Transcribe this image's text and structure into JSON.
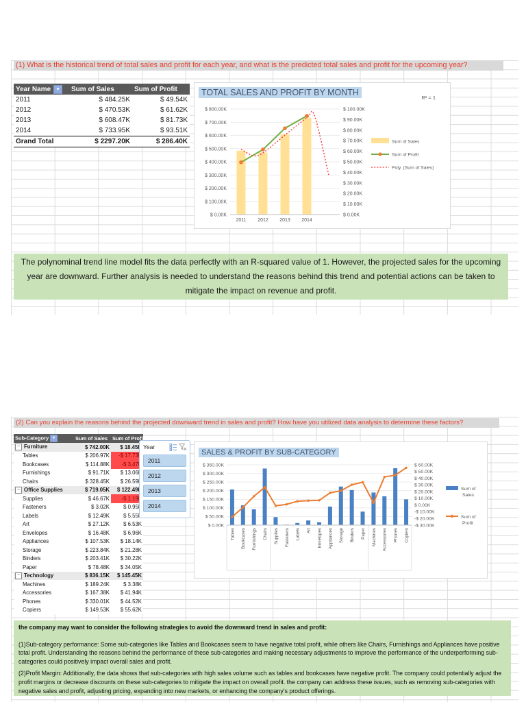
{
  "section1": {
    "question": "(1) What is the historical trend of total sales and profit for each year, and what is the predicted total sales and profit for the upcoming year?",
    "pivot": {
      "headers": [
        "Year Name",
        "Sum of Sales",
        "Sum of Profit"
      ],
      "rows": [
        [
          "2011",
          "$ 484.25K",
          "$ 49.54K"
        ],
        [
          "2012",
          "$ 470.53K",
          "$ 61.62K"
        ],
        [
          "2013",
          "$ 608.47K",
          "$ 81.73K"
        ],
        [
          "2014",
          "$ 733.95K",
          "$ 93.51K"
        ]
      ],
      "total": [
        "Grand Total",
        "$ 2297.20K",
        "$ 286.40K"
      ]
    },
    "note": "The polynominal trend line model fits the data perfectly with an R-squared value of 1. However, the projected sales for the upcoming year are downward. Further analysis is needed to understand the reasons behind this trend and potential actions can be taken to mitigate the impact on revenue and profit."
  },
  "section2": {
    "question": "(2) Can you explain the reasons behind the projected downward trend in sales and profit? How have you utilized data analysis to determine these factors?",
    "pivot": {
      "headers": [
        "Sub-Category",
        "Sum of Sales",
        "Sum of Profit"
      ],
      "rows": [
        {
          "label": "Furniture",
          "sales": "$ 742.00K",
          "profit": "$ 18.45K",
          "type": "group"
        },
        {
          "label": "Tables",
          "sales": "$ 206.97K",
          "profit": "-$ 17.73K",
          "type": "item",
          "neg": true
        },
        {
          "label": "Bookcases",
          "sales": "$ 114.88K",
          "profit": "-$ 3.47K",
          "type": "item",
          "neg": true
        },
        {
          "label": "Furnishings",
          "sales": "$ 91.71K",
          "profit": "$ 13.06K",
          "type": "item"
        },
        {
          "label": "Chairs",
          "sales": "$ 328.45K",
          "profit": "$ 26.59K",
          "type": "item"
        },
        {
          "label": "Office Supplies",
          "sales": "$ 719.05K",
          "profit": "$ 122.49K",
          "type": "group"
        },
        {
          "label": "Supplies",
          "sales": "$ 46.67K",
          "profit": "-$ 1.19K",
          "type": "item",
          "neg": true
        },
        {
          "label": "Fasteners",
          "sales": "$ 3.02K",
          "profit": "$ 0.95K",
          "type": "item"
        },
        {
          "label": "Labels",
          "sales": "$ 12.49K",
          "profit": "$ 5.55K",
          "type": "item"
        },
        {
          "label": "Art",
          "sales": "$ 27.12K",
          "profit": "$ 6.53K",
          "type": "item"
        },
        {
          "label": "Envelopes",
          "sales": "$ 16.48K",
          "profit": "$ 6.96K",
          "type": "item"
        },
        {
          "label": "Appliances",
          "sales": "$ 107.53K",
          "profit": "$ 18.14K",
          "type": "item"
        },
        {
          "label": "Storage",
          "sales": "$ 223.84K",
          "profit": "$ 21.28K",
          "type": "item"
        },
        {
          "label": "Binders",
          "sales": "$ 203.41K",
          "profit": "$ 30.22K",
          "type": "item"
        },
        {
          "label": "Paper",
          "sales": "$ 78.48K",
          "profit": "$ 34.05K",
          "type": "item"
        },
        {
          "label": "Technology",
          "sales": "$ 836.15K",
          "profit": "$ 145.45K",
          "type": "group"
        },
        {
          "label": "Machines",
          "sales": "$ 189.24K",
          "profit": "$ 3.38K",
          "type": "item"
        },
        {
          "label": "Accessories",
          "sales": "$ 167.38K",
          "profit": "$ 41.94K",
          "type": "item"
        },
        {
          "label": "Phones",
          "sales": "$ 330.01K",
          "profit": "$ 44.52K",
          "type": "item"
        },
        {
          "label": "Copiers",
          "sales": "$ 149.53K",
          "profit": "$ 55.62K",
          "type": "item"
        }
      ]
    },
    "slicer": {
      "title": "Year",
      "items": [
        "2011",
        "2012",
        "2013",
        "2014"
      ]
    },
    "note": {
      "title": "the company may want to consider the following strategies to avoid the downward trend in sales and profit:",
      "p1": "(1)Sub-category performance: Some sub-categories like Tables and Bookcases seem to have negative total profit, while others like Chairs, Furnishings and Appliances have positive total profit. Understanding the reasons behind the performance of these sub-categories and making necessary adjustments to improve the performance of the underperforming sub-categories could positively impact overall sales and profit.",
      "p2": "(2)Profit Margin: Additionally, the data shows that sub-categories with high sales volume such as tables and bookcases have negative profit. The company could potentially adjust the profit margins or decrease discounts on these sub-categories to mitigate the impact on overall profit.   the company can address these issues, such as removing sub-categories with negative sales and profit, adjusting pricing, expanding into new markets, or enhancing the company's product offerings."
    }
  },
  "chart_data": [
    {
      "type": "combo",
      "title": "TOTAL SALES AND PROFIT BY MONTH",
      "annotation": "R² = 1",
      "categories": [
        "2011",
        "2012",
        "2013",
        "2014"
      ],
      "series": [
        {
          "name": "Sum of Sales",
          "type": "bar",
          "axis": "left",
          "values": [
            484.25,
            470.53,
            608.47,
            733.95
          ]
        },
        {
          "name": "Sum of Profit",
          "type": "line",
          "axis": "right",
          "values": [
            49.54,
            61.62,
            81.73,
            93.51
          ]
        }
      ],
      "trendline": {
        "name": "Poly. (Sum of Sales)",
        "axis": "left",
        "points": [
          [
            0,
            495
          ],
          [
            0.55,
            447
          ],
          [
            1,
            468
          ],
          [
            2,
            602
          ],
          [
            3,
            733
          ],
          [
            3.35,
            750
          ],
          [
            4,
            300
          ]
        ]
      },
      "left_axis": {
        "min": 0,
        "max": 800,
        "step": 100,
        "unit": "K"
      },
      "right_axis": {
        "min": 0,
        "max": 100,
        "step": 10,
        "unit": "K"
      },
      "legend": [
        "Sum of Sales",
        "Sum of Profit",
        "Poly. (Sum of Sales)"
      ],
      "legend_position": "right",
      "colors": {
        "bars": "#ffe095",
        "profit_line": "#70ad47",
        "marker": "#ed7d31",
        "trend": "#ff3232"
      }
    },
    {
      "type": "combo",
      "title": "SALES & PROFIT BY SUB-CATEGORY",
      "categories": [
        "Tables",
        "Bookcases",
        "Furnishings",
        "Chairs",
        "Supplies",
        "Fasteners",
        "Labels",
        "Art",
        "Envelopes",
        "Appliances",
        "Storage",
        "Binders",
        "Paper",
        "Machines",
        "Accessories",
        "Phones",
        "Copiers"
      ],
      "category_group_sizes": [
        4,
        9,
        4
      ],
      "series": [
        {
          "name": "Sum of Sales",
          "type": "bar",
          "axis": "left",
          "values": [
            206.97,
            114.88,
            91.71,
            328.45,
            46.67,
            3.02,
            12.49,
            27.12,
            16.48,
            107.53,
            223.84,
            203.41,
            78.48,
            189.24,
            167.38,
            330.01,
            149.53
          ]
        },
        {
          "name": "Sum of Profit",
          "type": "line",
          "axis": "right",
          "values": [
            -17.73,
            -3.47,
            13.06,
            26.59,
            -1.19,
            0.95,
            5.55,
            6.53,
            6.96,
            18.14,
            21.28,
            30.22,
            34.05,
            3.38,
            41.94,
            44.52,
            55.62
          ]
        }
      ],
      "left_axis": {
        "min": 0,
        "max": 350,
        "step": 50,
        "unit": "K"
      },
      "right_axis": {
        "min": -30,
        "max": 60,
        "step": 10,
        "unit": "K"
      },
      "legend": [
        [
          "Sum of",
          "Sales"
        ],
        [
          "Sum of",
          "Profit"
        ]
      ],
      "legend_position": "right",
      "colors": {
        "bars": "#4a80c4",
        "line": "#ed7d31"
      }
    }
  ]
}
